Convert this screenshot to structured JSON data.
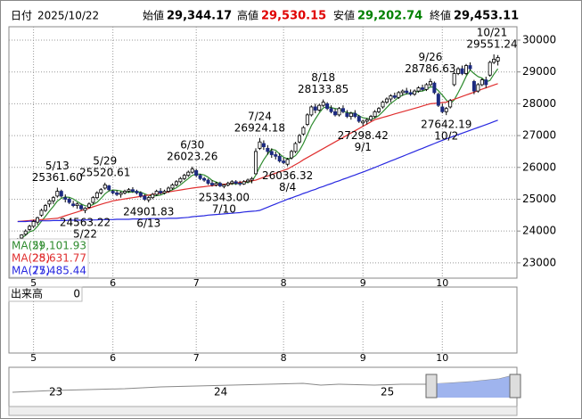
{
  "header": {
    "date_label": "日付",
    "date": "2025/10/22",
    "open_label": "始値",
    "open": {
      "value": 29344.17,
      "label": "29,344.17"
    },
    "open_color": "#000000",
    "high_label": "高値",
    "high": {
      "value": 29530.15,
      "label": "29,530.15"
    },
    "high_color": "#e00000",
    "low_label": "安値",
    "low": {
      "value": 29202.74,
      "label": "29,202.74"
    },
    "low_color": "#008000",
    "close_label": "終値",
    "close": {
      "value": 29453.11,
      "label": "29,453.11"
    },
    "close_color": "#000000"
  },
  "chart_data": {
    "type": "candlestick",
    "up_color": "#ffffff",
    "down_color": "#1c2a80",
    "wick_color": "#000000",
    "candles": [
      [
        23650,
        23780,
        23600,
        23750
      ],
      [
        23780,
        23900,
        23720,
        23880
      ],
      [
        23900,
        24050,
        23850,
        24000
      ],
      [
        24050,
        24200,
        24000,
        24150
      ],
      [
        24150,
        24350,
        24100,
        24300
      ],
      [
        24280,
        24450,
        24200,
        24420
      ],
      [
        24500,
        24700,
        24450,
        24650
      ],
      [
        24650,
        24850,
        24600,
        24800
      ],
      [
        24850,
        25000,
        24750,
        24950
      ],
      [
        24950,
        25100,
        24850,
        25050
      ],
      [
        25100,
        25361.6,
        25050,
        25250
      ],
      [
        25250,
        25300,
        25050,
        25100
      ],
      [
        25050,
        25150,
        24900,
        25000
      ],
      [
        25000,
        25050,
        24850,
        24900
      ],
      [
        24850,
        24950,
        24750,
        24800
      ],
      [
        24800,
        24900,
        24700,
        24850
      ],
      [
        24800,
        24850,
        24650,
        24700
      ],
      [
        24650,
        24750,
        24563.22,
        24720
      ],
      [
        24750,
        24900,
        24700,
        24850
      ],
      [
        24900,
        25100,
        24850,
        25050
      ],
      [
        25050,
        25250,
        25000,
        25200
      ],
      [
        25200,
        25350,
        25150,
        25300
      ],
      [
        25350,
        25520.61,
        25300,
        25450
      ],
      [
        25420,
        25450,
        25250,
        25300
      ],
      [
        25250,
        25300,
        25150,
        25200
      ],
      [
        25200,
        25280,
        25100,
        25150
      ],
      [
        25150,
        25250,
        25050,
        25200
      ],
      [
        25200,
        25300,
        25150,
        25250
      ],
      [
        25250,
        25350,
        25200,
        25300
      ],
      [
        25300,
        25380,
        25200,
        25250
      ],
      [
        25250,
        25300,
        25150,
        25200
      ],
      [
        25200,
        25250,
        25050,
        25100
      ],
      [
        25100,
        25150,
        24950,
        25000
      ],
      [
        24980,
        25100,
        24901.83,
        25050
      ],
      [
        25050,
        25200,
        25000,
        25150
      ],
      [
        25150,
        25300,
        25100,
        25250
      ],
      [
        25250,
        25350,
        25150,
        25200
      ],
      [
        25200,
        25300,
        25150,
        25250
      ],
      [
        25250,
        25400,
        25200,
        25350
      ],
      [
        25350,
        25500,
        25300,
        25450
      ],
      [
        25450,
        25600,
        25400,
        25550
      ],
      [
        25550,
        25700,
        25500,
        25650
      ],
      [
        25650,
        25800,
        25600,
        25750
      ],
      [
        25750,
        25900,
        25700,
        25850
      ],
      [
        25850,
        26023.26,
        25800,
        25950
      ],
      [
        25900,
        25950,
        25700,
        25750
      ],
      [
        25750,
        25800,
        25600,
        25650
      ],
      [
        25650,
        25700,
        25550,
        25600
      ],
      [
        25600,
        25650,
        25450,
        25500
      ],
      [
        25500,
        25600,
        25400,
        25450
      ],
      [
        25450,
        25550,
        25400,
        25500
      ],
      [
        25500,
        25550,
        25380,
        25420
      ],
      [
        25400,
        25480,
        25343,
        25450
      ],
      [
        25450,
        25550,
        25400,
        25500
      ],
      [
        25500,
        25600,
        25450,
        25550
      ],
      [
        25550,
        25600,
        25450,
        25500
      ],
      [
        25500,
        25580,
        25420,
        25480
      ],
      [
        25480,
        25600,
        25450,
        25550
      ],
      [
        25550,
        25650,
        25500,
        25600
      ],
      [
        25600,
        25700,
        25500,
        25650
      ],
      [
        25800,
        26600,
        25780,
        26500
      ],
      [
        26600,
        26924.18,
        26550,
        26800
      ],
      [
        26750,
        26850,
        26550,
        26650
      ],
      [
        26600,
        26700,
        26400,
        26500
      ],
      [
        26500,
        26600,
        26300,
        26400
      ],
      [
        26400,
        26500,
        26250,
        26350
      ],
      [
        26350,
        26450,
        26150,
        26200
      ],
      [
        26200,
        26300,
        26100,
        26150
      ],
      [
        26100,
        26300,
        26036.32,
        26250
      ],
      [
        26300,
        26550,
        26250,
        26500
      ],
      [
        26500,
        26800,
        26450,
        26750
      ],
      [
        26800,
        27050,
        26750,
        27000
      ],
      [
        27050,
        27300,
        27000,
        27250
      ],
      [
        27350,
        27700,
        27300,
        27650
      ],
      [
        27650,
        27950,
        27600,
        27900
      ],
      [
        27900,
        28000,
        27700,
        27800
      ],
      [
        27800,
        28000,
        27750,
        27950
      ],
      [
        27950,
        28133.85,
        27900,
        28050
      ],
      [
        28000,
        28050,
        27800,
        27850
      ],
      [
        27850,
        27950,
        27700,
        27750
      ],
      [
        27750,
        27850,
        27600,
        27650
      ],
      [
        27650,
        27900,
        27600,
        27850
      ],
      [
        27850,
        27950,
        27700,
        27750
      ],
      [
        27700,
        27800,
        27550,
        27600
      ],
      [
        27600,
        27750,
        27500,
        27700
      ],
      [
        27700,
        27800,
        27550,
        27600
      ],
      [
        27600,
        27650,
        27400,
        27450
      ],
      [
        27400,
        27500,
        27298.42,
        27450
      ],
      [
        27450,
        27550,
        27350,
        27500
      ],
      [
        27500,
        27650,
        27450,
        27600
      ],
      [
        27600,
        27800,
        27550,
        27750
      ],
      [
        27750,
        27900,
        27700,
        27850
      ],
      [
        27900,
        28100,
        27850,
        28050
      ],
      [
        28050,
        28200,
        28000,
        28150
      ],
      [
        28150,
        28300,
        28050,
        28250
      ],
      [
        28250,
        28350,
        28150,
        28200
      ],
      [
        28200,
        28400,
        28150,
        28350
      ],
      [
        28350,
        28450,
        28250,
        28400
      ],
      [
        28400,
        28500,
        28300,
        28350
      ],
      [
        28350,
        28450,
        28250,
        28300
      ],
      [
        28300,
        28450,
        28250,
        28400
      ],
      [
        28400,
        28550,
        28350,
        28500
      ],
      [
        28500,
        28600,
        28400,
        28450
      ],
      [
        28450,
        28650,
        28400,
        28600
      ],
      [
        28600,
        28786.63,
        28550,
        28700
      ],
      [
        28650,
        28700,
        28300,
        28350
      ],
      [
        28300,
        28350,
        27900,
        27950
      ],
      [
        27900,
        28000,
        27700,
        27750
      ],
      [
        27750,
        27900,
        27642.19,
        27850
      ],
      [
        27900,
        28150,
        27850,
        28100
      ],
      [
        28600,
        29000,
        28550,
        28950
      ],
      [
        28950,
        29150,
        28900,
        29100
      ],
      [
        29100,
        29200,
        28900,
        28950
      ],
      [
        28950,
        29250,
        28900,
        29200
      ],
      [
        29200,
        29300,
        29050,
        29100
      ],
      [
        28700,
        28750,
        28300,
        28400
      ],
      [
        28400,
        28650,
        28350,
        28600
      ],
      [
        28600,
        28800,
        28550,
        28750
      ],
      [
        28750,
        28850,
        28500,
        28600
      ],
      [
        28900,
        29350,
        28850,
        29300
      ],
      [
        29300,
        29551.24,
        29250,
        29400
      ],
      [
        29344.17,
        29530.15,
        29202.74,
        29453.11
      ]
    ],
    "series": [
      {
        "name": "MA(5)",
        "color": "#2e8b2e",
        "last": {
          "value": 29101.93,
          "label": "29,101.93"
        },
        "values": [
          23700,
          23780,
          23870,
          23980,
          24016,
          24150,
          24304,
          24464,
          24624,
          24774,
          24940,
          25030,
          25070,
          25060,
          25010,
          24930,
          24850,
          24794,
          24784,
          24834,
          24904,
          25024,
          25170,
          25260,
          25290,
          25280,
          25260,
          25220,
          25220,
          25230,
          25240,
          25220,
          25170,
          25120,
          25100,
          25110,
          25130,
          25180,
          25240,
          25300,
          25360,
          25450,
          25550,
          25650,
          25750,
          25790,
          25790,
          25760,
          25690,
          25590,
          25540,
          25494,
          25464,
          25464,
          25484,
          25484,
          25496,
          25516,
          25536,
          25556,
          25756,
          26020,
          26240,
          26420,
          26570,
          26540,
          26420,
          26320,
          26270,
          26290,
          26370,
          26530,
          26750,
          27030,
          27310,
          27520,
          27710,
          27870,
          27910,
          27880,
          27850,
          27830,
          27770,
          27720,
          27710,
          27700,
          27620,
          27560,
          27540,
          27520,
          27550,
          27630,
          27750,
          27880,
          28010,
          28100,
          28200,
          28270,
          28310,
          28320,
          28360,
          28390,
          28400,
          28450,
          28530,
          28520,
          28410,
          28270,
          28120,
          28000,
          28120,
          28350,
          28590,
          28860,
          29060,
          28950,
          28850,
          28810,
          28690,
          28730,
          28930,
          29101.93
        ]
      },
      {
        "name": "MA(25)",
        "color": "#e03030",
        "last": {
          "value": 28631.77,
          "label": "28,631.77"
        },
        "values": [
          24300,
          24310,
          24320,
          24330,
          24340,
          24350,
          24360,
          24370,
          24380,
          24390,
          24400,
          24440,
          24480,
          24520,
          24560,
          24600,
          24640,
          24680,
          24720,
          24760,
          24800,
          24840,
          24880,
          24910,
          24950,
          24970,
          24990,
          25010,
          25030,
          25050,
          25070,
          25090,
          25110,
          25130,
          25150,
          25170,
          25190,
          25210,
          25230,
          25250,
          25270,
          25290,
          25310,
          25330,
          25350,
          25365,
          25380,
          25395,
          25410,
          25425,
          25440,
          25455,
          25470,
          25485,
          25500,
          25515,
          25530,
          25550,
          25565,
          25580,
          25600,
          25645,
          25690,
          25730,
          25775,
          25820,
          25865,
          25905,
          25950,
          26020,
          26090,
          26160,
          26240,
          26310,
          26380,
          26450,
          26520,
          26590,
          26660,
          26730,
          26800,
          26870,
          26940,
          27010,
          27080,
          27150,
          27220,
          27290,
          27360,
          27430,
          27500,
          27535,
          27570,
          27605,
          27640,
          27680,
          27715,
          27750,
          27785,
          27820,
          27855,
          27890,
          27930,
          27965,
          28000,
          28010,
          28020,
          28035,
          28050,
          28095,
          28140,
          28185,
          28230,
          28275,
          28320,
          28365,
          28410,
          28455,
          28500,
          28545,
          28590,
          28631.77
        ]
      },
      {
        "name": "MA(75)",
        "color": "#2828e0",
        "last": {
          "value": 27485.44,
          "label": "27,485.44"
        },
        "values": [
          24300,
          24300,
          24300,
          24310,
          24310,
          24310,
          24320,
          24320,
          24320,
          24330,
          24330,
          24330,
          24330,
          24340,
          24340,
          24340,
          24340,
          24350,
          24350,
          24350,
          24350,
          24360,
          24360,
          24360,
          24360,
          24370,
          24370,
          24370,
          24370,
          24380,
          24380,
          24380,
          24380,
          24390,
          24390,
          24390,
          24390,
          24390,
          24400,
          24400,
          24400,
          24410,
          24420,
          24430,
          24450,
          24460,
          24470,
          24480,
          24500,
          24510,
          24520,
          24530,
          24540,
          24550,
          24560,
          24570,
          24580,
          24600,
          24610,
          24620,
          24630,
          24650,
          24700,
          24750,
          24800,
          24850,
          24900,
          24950,
          25000,
          25040,
          25090,
          25130,
          25180,
          25220,
          25270,
          25310,
          25360,
          25400,
          25450,
          25490,
          25540,
          25580,
          25630,
          25670,
          25720,
          25760,
          25810,
          25850,
          25900,
          25950,
          26000,
          26050,
          26100,
          26150,
          26200,
          26250,
          26300,
          26350,
          26400,
          26450,
          26500,
          26550,
          26600,
          26650,
          26700,
          26750,
          26800,
          26850,
          26895,
          26940,
          26985,
          27030,
          27075,
          27120,
          27165,
          27210,
          27255,
          27300,
          27345,
          27390,
          27440,
          27485.44
        ]
      }
    ],
    "annotations": [
      {
        "date": "5/13",
        "value": {
          "value": 25361.6,
          "label": "25361.60"
        }
      },
      {
        "date": "5/22",
        "value": 24563.22
      },
      {
        "date": "5/29",
        "value": 25520.61
      },
      {
        "date": "6/13",
        "value": 24901.83
      },
      {
        "date": "6/30",
        "value": 26023.26
      },
      {
        "date": "7/10",
        "value": {
          "value": 25343,
          "label": "25343.00"
        }
      },
      {
        "date": "7/24",
        "value": 26924.18
      },
      {
        "date": "8/4",
        "value": 26036.32
      },
      {
        "date": "8/18",
        "value": 28133.85
      },
      {
        "date": "9/1",
        "value": 27298.42
      },
      {
        "date": "9/26",
        "value": 28786.63
      },
      {
        "date": "10/2",
        "value": 27642.19
      },
      {
        "date": "10/21",
        "value": 29551.24
      }
    ],
    "ylim": [
      22520,
      30420
    ],
    "yticks": [
      23000,
      24000,
      25000,
      26000,
      27000,
      28000,
      29000,
      30000
    ],
    "xlim": [
      -2.2,
      125.8
    ],
    "xticks": [
      {
        "value": 4,
        "label": "5"
      },
      {
        "value": 24,
        "label": "6"
      },
      {
        "value": 45,
        "label": "7"
      },
      {
        "value": 67,
        "label": "8"
      },
      {
        "value": 87,
        "label": "9"
      },
      {
        "value": 107,
        "label": "10"
      }
    ],
    "grid": true
  },
  "volume": {
    "title": "出来高",
    "axis_max": 0
  },
  "navigator": {
    "labels": [
      "23",
      "24",
      "25"
    ]
  }
}
